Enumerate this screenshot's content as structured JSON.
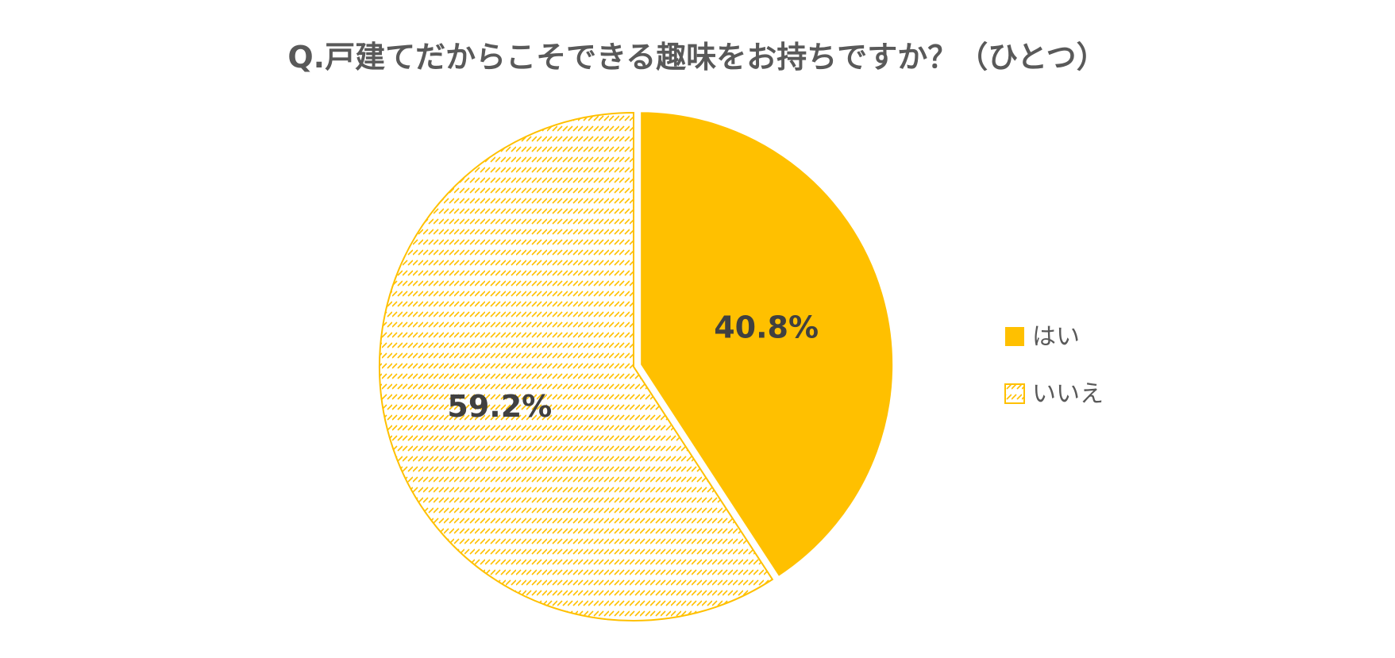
{
  "chart_data": {
    "type": "pie",
    "title": "Q.戸建てだからこそできる趣味をお持ちですか？（ひとつ）",
    "categories": [
      "はい",
      "いいえ"
    ],
    "values": [
      40.8,
      59.2
    ],
    "data_labels": [
      "40.8%",
      "59.2%"
    ],
    "legend": {
      "position": "right",
      "entries": [
        "はい",
        "いいえ"
      ]
    },
    "colors": {
      "yes": "#FFC000",
      "no_pattern": "#FFC000",
      "background": "#FFFFFF",
      "title": "#595959",
      "label": "#404040"
    },
    "fills": [
      "solid",
      "hatched"
    ]
  }
}
